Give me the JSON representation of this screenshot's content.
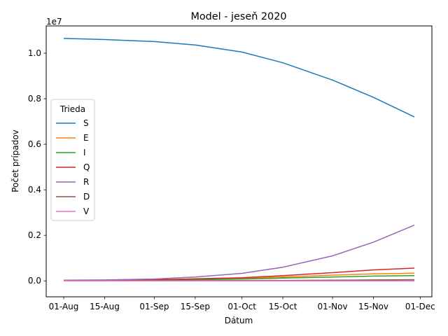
{
  "chart_data": {
    "type": "line",
    "title": "Model - jeseň 2020",
    "xlabel": "Dátum",
    "ylabel": "Počet prípadov",
    "y_offset_text": "1e7",
    "x_ticks": [
      "01-Aug",
      "15-Aug",
      "01-Sep",
      "15-Sep",
      "01-Oct",
      "15-Oct",
      "01-Nov",
      "15-Nov",
      "01-Dec"
    ],
    "x_tick_dates": [
      "2020-08-01",
      "2020-08-15",
      "2020-09-01",
      "2020-09-15",
      "2020-10-01",
      "2020-10-15",
      "2020-11-01",
      "2020-11-15",
      "2020-12-01"
    ],
    "xlim": [
      "2020-07-26",
      "2020-12-05"
    ],
    "y_ticks": [
      "0.0",
      "0.2",
      "0.4",
      "0.6",
      "0.8",
      "1.0"
    ],
    "ylim": [
      -0.07,
      1.12
    ],
    "legend_title": "Trieda",
    "legend_position": "center-left",
    "grid": false,
    "x": [
      "2020-08-01",
      "2020-08-15",
      "2020-09-01",
      "2020-09-15",
      "2020-10-01",
      "2020-10-15",
      "2020-11-01",
      "2020-11-15",
      "2020-11-29"
    ],
    "series": [
      {
        "name": "S",
        "color": "#1f77b4",
        "values": [
          1.065,
          1.06,
          1.051,
          1.036,
          1.005,
          0.958,
          0.882,
          0.806,
          0.72
        ]
      },
      {
        "name": "E",
        "color": "#ff7f0e",
        "values": [
          0.0,
          0.0015,
          0.004,
          0.007,
          0.011,
          0.017,
          0.025,
          0.031,
          0.034
        ]
      },
      {
        "name": "I",
        "color": "#2ca02c",
        "values": [
          0.0,
          0.001,
          0.003,
          0.005,
          0.008,
          0.012,
          0.017,
          0.021,
          0.023
        ]
      },
      {
        "name": "Q",
        "color": "#d62728",
        "values": [
          0.0,
          0.002,
          0.005,
          0.009,
          0.014,
          0.023,
          0.036,
          0.048,
          0.056
        ]
      },
      {
        "name": "R",
        "color": "#9467bd",
        "values": [
          0.003,
          0.004,
          0.008,
          0.017,
          0.033,
          0.06,
          0.11,
          0.17,
          0.245
        ]
      },
      {
        "name": "D",
        "color": "#8c564b",
        "values": [
          0.0,
          0.0,
          0.0005,
          0.001,
          0.0015,
          0.002,
          0.003,
          0.004,
          0.005
        ]
      },
      {
        "name": "V",
        "color": "#e377c2",
        "values": [
          0.0,
          0.0,
          0.0,
          0.0,
          0.0,
          0.0,
          0.0,
          0.0,
          0.0
        ]
      }
    ]
  }
}
